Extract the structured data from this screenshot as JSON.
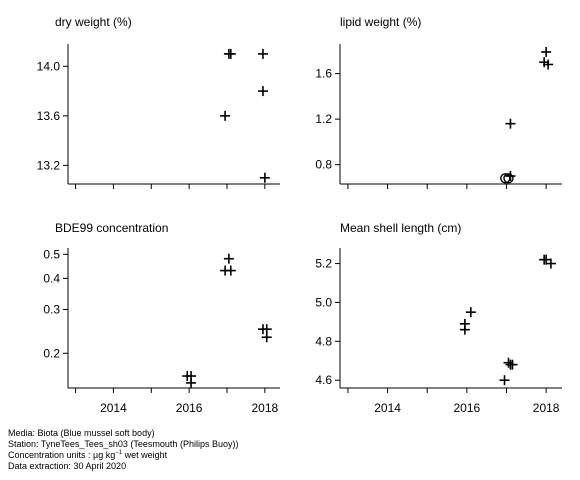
{
  "chart_data": [
    {
      "type": "scatter",
      "title": "dry weight (%)",
      "xlabel": "",
      "ylabel": "",
      "xlim": [
        2012.8,
        2018.4
      ],
      "xticks": [
        2014,
        2016,
        2018
      ],
      "show_x_tick_labels": false,
      "ylim": [
        13.05,
        14.18
      ],
      "yticks": [
        13.2,
        13.6,
        14.0
      ],
      "ytick_labels": [
        "13.2",
        "13.6",
        "14.0"
      ],
      "grid": false,
      "points": [
        {
          "x": 2016.95,
          "y": 13.6,
          "marker": "+"
        },
        {
          "x": 2017.05,
          "y": 14.1,
          "marker": "+"
        },
        {
          "x": 2017.1,
          "y": 14.1,
          "marker": "+"
        },
        {
          "x": 2017.95,
          "y": 14.1,
          "marker": "+"
        },
        {
          "x": 2017.95,
          "y": 13.8,
          "marker": "+"
        },
        {
          "x": 2018.0,
          "y": 13.1,
          "marker": "+"
        }
      ]
    },
    {
      "type": "scatter",
      "title": "lipid weight (%)",
      "xlabel": "",
      "ylabel": "",
      "xlim": [
        2012.8,
        2018.4
      ],
      "xticks": [
        2014,
        2016,
        2018
      ],
      "show_x_tick_labels": false,
      "ylim": [
        0.63,
        1.86
      ],
      "yticks": [
        0.8,
        1.2,
        1.6
      ],
      "ytick_labels": [
        "0.8",
        "1.2",
        "1.6"
      ],
      "grid": false,
      "points": [
        {
          "x": 2016.97,
          "y": 0.68,
          "marker": "o"
        },
        {
          "x": 2017.05,
          "y": 0.68,
          "marker": "o"
        },
        {
          "x": 2017.1,
          "y": 0.7,
          "marker": "+"
        },
        {
          "x": 2017.1,
          "y": 1.16,
          "marker": "+"
        },
        {
          "x": 2017.95,
          "y": 1.7,
          "marker": "+"
        },
        {
          "x": 2018.05,
          "y": 1.68,
          "marker": "+"
        },
        {
          "x": 2018.0,
          "y": 1.79,
          "marker": "+"
        }
      ]
    },
    {
      "type": "scatter",
      "title": "BDE99 concentration",
      "xlabel": "",
      "ylabel": "",
      "scale_y": "log",
      "xlim": [
        2012.8,
        2018.4
      ],
      "xticks": [
        2014,
        2016,
        2018
      ],
      "xtick_labels": [
        "2014",
        "2016",
        "2018"
      ],
      "show_x_tick_labels": true,
      "ylim": [
        0.145,
        0.53
      ],
      "yticks": [
        0.2,
        0.3,
        0.4,
        0.5
      ],
      "ytick_labels": [
        "0.2",
        "0.3",
        "0.4",
        "0.5"
      ],
      "grid": false,
      "points": [
        {
          "x": 2015.95,
          "y": 0.162,
          "marker": "+"
        },
        {
          "x": 2016.05,
          "y": 0.162,
          "marker": "+"
        },
        {
          "x": 2016.05,
          "y": 0.152,
          "marker": "+"
        },
        {
          "x": 2016.95,
          "y": 0.43,
          "marker": "+"
        },
        {
          "x": 2017.1,
          "y": 0.43,
          "marker": "+"
        },
        {
          "x": 2017.05,
          "y": 0.48,
          "marker": "+"
        },
        {
          "x": 2017.95,
          "y": 0.25,
          "marker": "+"
        },
        {
          "x": 2018.05,
          "y": 0.25,
          "marker": "+"
        },
        {
          "x": 2018.05,
          "y": 0.232,
          "marker": "+"
        }
      ]
    },
    {
      "type": "scatter",
      "title": "Mean shell length (cm)",
      "xlabel": "",
      "ylabel": "",
      "xlim": [
        2012.8,
        2018.4
      ],
      "xticks": [
        2014,
        2016,
        2018
      ],
      "xtick_labels": [
        "2014",
        "2016",
        "2018"
      ],
      "show_x_tick_labels": true,
      "ylim": [
        4.56,
        5.28
      ],
      "yticks": [
        4.6,
        4.8,
        5.0,
        5.2
      ],
      "ytick_labels": [
        "4.6",
        "4.8",
        "5.0",
        "5.2"
      ],
      "grid": false,
      "points": [
        {
          "x": 2015.95,
          "y": 4.86,
          "marker": "+"
        },
        {
          "x": 2015.95,
          "y": 4.89,
          "marker": "+"
        },
        {
          "x": 2016.1,
          "y": 4.95,
          "marker": "+"
        },
        {
          "x": 2016.95,
          "y": 4.6,
          "marker": "+"
        },
        {
          "x": 2017.1,
          "y": 4.68,
          "marker": "+"
        },
        {
          "x": 2017.15,
          "y": 4.68,
          "marker": "+"
        },
        {
          "x": 2017.05,
          "y": 4.69,
          "marker": "+"
        },
        {
          "x": 2017.95,
          "y": 5.22,
          "marker": "+"
        },
        {
          "x": 2018.0,
          "y": 5.22,
          "marker": "+"
        },
        {
          "x": 2018.12,
          "y": 5.2,
          "marker": "+"
        }
      ]
    }
  ],
  "caption": {
    "media": "Media: Biota (Blue mussel soft body)",
    "station": "Station: TyneTees_Tees_sh03 (Teesmouth (Philips Buoy))",
    "units_prefix": "Concentration units : µg kg",
    "units_exp": "−1",
    "units_suffix": " wet weight",
    "extraction": "Data extraction: 30 April 2020"
  },
  "colors": {
    "ink": "#000000",
    "background": "#ffffff"
  }
}
